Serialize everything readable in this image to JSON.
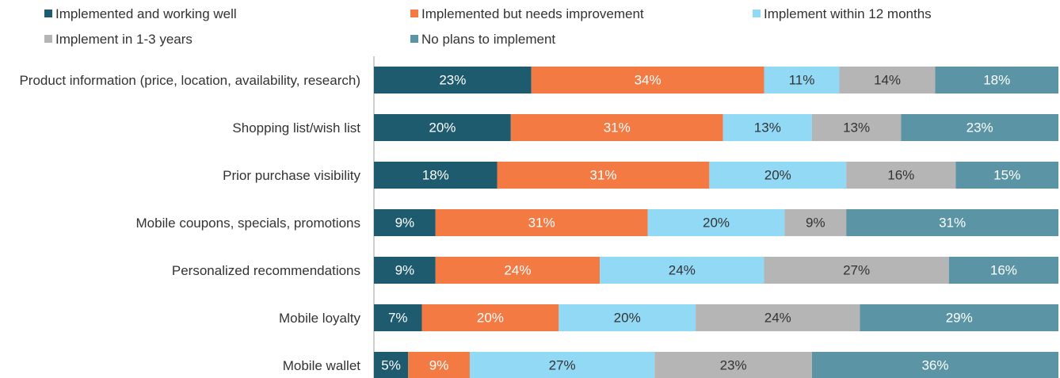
{
  "chart_data": {
    "type": "stacked_bar_horizontal",
    "categories": [
      "Product information (price, location, availability, research)",
      "Shopping list/wish list",
      "Prior purchase visibility",
      "Mobile coupons, specials, promotions",
      "Personalized recommendations",
      "Mobile loyalty",
      "Mobile wallet"
    ],
    "series": [
      {
        "name": "Implemented and working well",
        "color": "#1f5b6e",
        "values": [
          23,
          20,
          18,
          9,
          9,
          7,
          5
        ],
        "value_labels": [
          "23%",
          "20%",
          "18%",
          "9%",
          "9%",
          "7%",
          "5%"
        ]
      },
      {
        "name": "Implemented but needs improvement",
        "color": "#f47a44",
        "values": [
          34,
          31,
          31,
          31,
          24,
          20,
          9
        ],
        "value_labels": [
          "34%",
          "31%",
          "31%",
          "31%",
          "24%",
          "20%",
          "9%"
        ]
      },
      {
        "name": "Implement within 12 months",
        "color": "#92d9f5",
        "values": [
          11,
          13,
          20,
          20,
          24,
          20,
          27
        ],
        "value_labels": [
          "11%",
          "13%",
          "20%",
          "20%",
          "24%",
          "20%",
          "27%"
        ]
      },
      {
        "name": "Implement in 1-3 years",
        "color": "#b5b5b5",
        "values": [
          14,
          13,
          16,
          9,
          27,
          24,
          23
        ],
        "value_labels": [
          "14%",
          "13%",
          "16%",
          "9%",
          "27%",
          "24%",
          "23%"
        ]
      },
      {
        "name": "No plans to implement",
        "color": "#5b95a5",
        "values": [
          18,
          23,
          15,
          31,
          16,
          29,
          36
        ],
        "value_labels": [
          "18%",
          "23%",
          "15%",
          "31%",
          "16%",
          "29%",
          "36%"
        ]
      }
    ],
    "xlim": [
      0,
      100
    ]
  }
}
